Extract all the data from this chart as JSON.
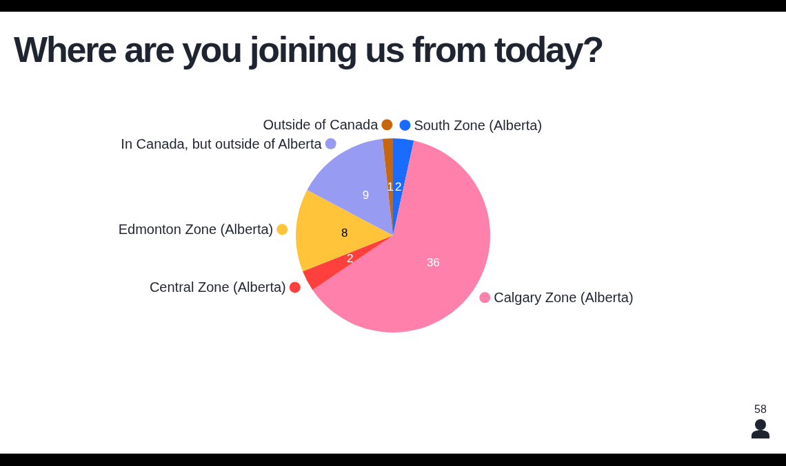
{
  "chart_data": {
    "type": "pie",
    "title": "Where are you joining us from today?",
    "categories": [
      "South Zone (Alberta)",
      "Calgary Zone (Alberta)",
      "Central Zone (Alberta)",
      "Edmonton Zone (Alberta)",
      "In Canada, but outside of Alberta",
      "Outside of Canada"
    ],
    "values": [
      2,
      36,
      2,
      8,
      9,
      1
    ],
    "colors": [
      "#1a6cff",
      "#ff80ab",
      "#ff403d",
      "#ffc43a",
      "#979cf2",
      "#c8650f"
    ],
    "data_labels": true,
    "legend": "left",
    "annotations": [
      "58"
    ]
  }
}
